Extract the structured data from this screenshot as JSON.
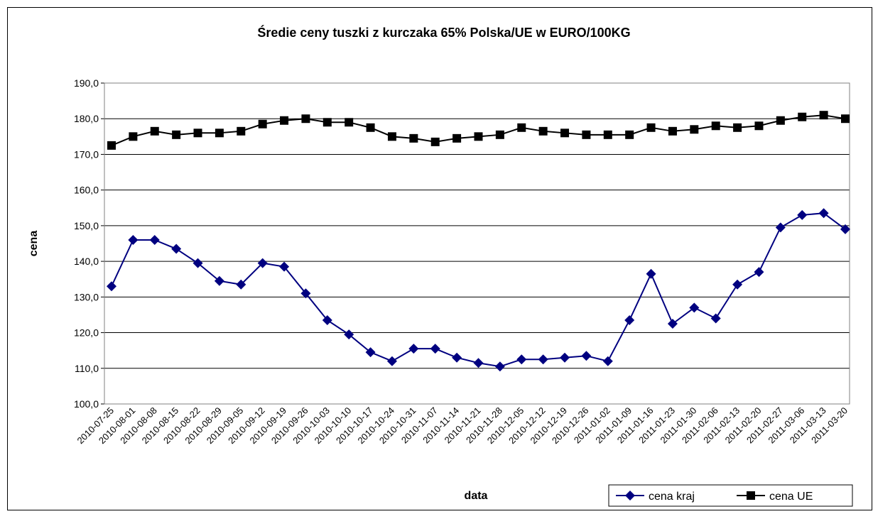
{
  "chart_data": {
    "type": "line",
    "title": "Średie ceny tuszki z kurczaka 65% Polska/UE w EURO/100KG",
    "x_label": "data",
    "y_label": "cena",
    "categories": [
      "2010-07-25",
      "2010-08-01",
      "2010-08-08",
      "2010-08-15",
      "2010-08-22",
      "2010-08-29",
      "2010-09-05",
      "2010-09-12",
      "2010-09-19",
      "2010-09-26",
      "2010-10-03",
      "2010-10-10",
      "2010-10-17",
      "2010-10-24",
      "2010-10-31",
      "2010-11-07",
      "2010-11-14",
      "2010-11-21",
      "2010-11-28",
      "2010-12-05",
      "2010-12-12",
      "2010-12-19",
      "2010-12-26",
      "2011-01-02",
      "2011-01-09",
      "2011-01-16",
      "2011-01-23",
      "2011-01-30",
      "2011-02-06",
      "2011-02-13",
      "2011-02-20",
      "2011-02-27",
      "2011-03-06",
      "2011-03-13",
      "2011-03-20"
    ],
    "series": [
      {
        "name": "cena kraj",
        "color": "#000080",
        "marker": "diamond",
        "values": [
          133,
          146,
          146,
          143.5,
          139.5,
          134.5,
          133.5,
          139.5,
          138.5,
          131,
          123.5,
          119.5,
          114.5,
          112,
          115.5,
          115.5,
          113,
          111.5,
          110.5,
          112.5,
          112.5,
          113,
          113.5,
          112,
          123.5,
          136.5,
          122.5,
          127,
          124,
          133.5,
          137,
          149.5,
          153,
          153.5,
          149
        ]
      },
      {
        "name": "cena UE",
        "color": "#000000",
        "marker": "square",
        "values": [
          172.5,
          175,
          176.5,
          175.5,
          176,
          176,
          176.5,
          178.5,
          179.5,
          180,
          179,
          179,
          177.5,
          175,
          174.5,
          173.5,
          174.5,
          175,
          175.5,
          177.5,
          176.5,
          176,
          175.5,
          175.5,
          175.5,
          177.5,
          176.5,
          177,
          178,
          177.5,
          178,
          179.5,
          180.5,
          181,
          180
        ]
      }
    ],
    "ylim": [
      100,
      190
    ],
    "yticks": [
      {
        "value": 100,
        "label": "100,0"
      },
      {
        "value": 110,
        "label": "110,0"
      },
      {
        "value": 120,
        "label": "120,0"
      },
      {
        "value": 130,
        "label": "130,0"
      },
      {
        "value": 140,
        "label": "140,0"
      },
      {
        "value": 150,
        "label": "150,0"
      },
      {
        "value": 160,
        "label": "160,0"
      },
      {
        "value": 170,
        "label": "170,0"
      },
      {
        "value": 180,
        "label": "180,0"
      },
      {
        "value": 190,
        "label": "190,0"
      }
    ],
    "grid": true,
    "legend": "bottom-right"
  }
}
